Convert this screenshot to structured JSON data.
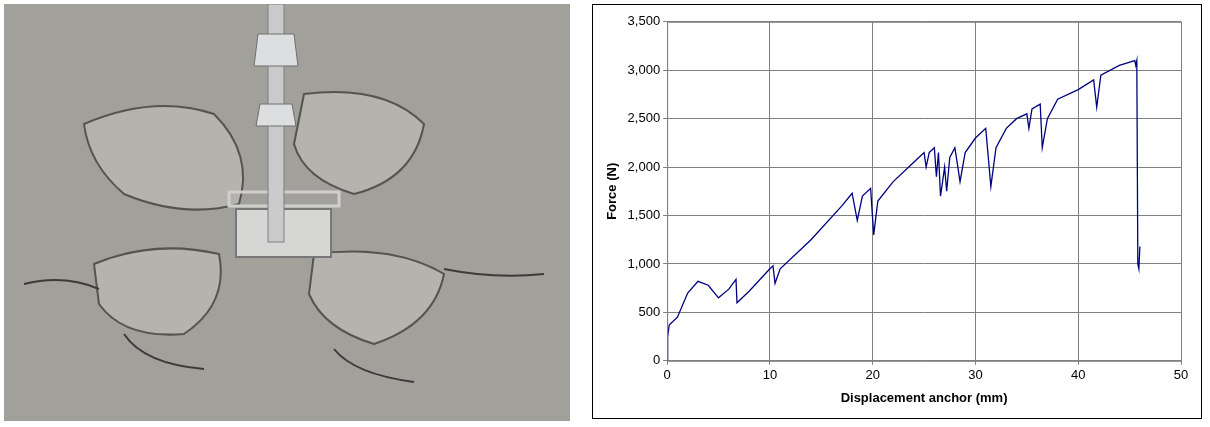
{
  "chart_data": {
    "type": "line",
    "x_label": "Displacement anchor (mm)",
    "y_label": "Force (N)",
    "x": [
      0,
      0.05,
      0.2,
      1,
      2,
      3,
      4,
      5,
      6,
      6.7,
      6.8,
      8,
      10,
      10.3,
      10.5,
      11,
      14,
      17,
      18,
      18.5,
      19,
      19.8,
      20.1,
      20.5,
      22,
      24,
      25,
      25.2,
      25.5,
      26,
      26.2,
      26.4,
      26.6,
      27,
      27.2,
      27.5,
      28,
      28.5,
      29,
      30,
      31,
      31.5,
      32,
      33,
      34,
      35,
      35.2,
      35.5,
      36.3,
      36.5,
      37,
      38,
      40,
      41.5,
      41.8,
      42.2,
      44,
      45.5,
      45.6,
      45.7,
      45.8,
      45.9,
      46
    ],
    "values": [
      0,
      250,
      370,
      450,
      700,
      820,
      780,
      650,
      740,
      840,
      600,
      720,
      950,
      980,
      800,
      950,
      1250,
      1600,
      1730,
      1450,
      1700,
      1780,
      1300,
      1650,
      1850,
      2050,
      2150,
      2000,
      2150,
      2200,
      1900,
      2150,
      1700,
      2000,
      1750,
      2100,
      2200,
      1850,
      2150,
      2300,
      2400,
      1800,
      2200,
      2400,
      2500,
      2550,
      2400,
      2600,
      2650,
      2200,
      2500,
      2700,
      2800,
      2900,
      2620,
      2950,
      3050,
      3100,
      3050,
      3100,
      1000,
      950,
      1180
    ],
    "color": "#000080",
    "xlim": [
      0,
      50
    ],
    "xticks": [
      0,
      10,
      20,
      30,
      40,
      50
    ],
    "ylim": [
      0,
      3500
    ],
    "yticks": [
      0,
      500,
      1000,
      1500,
      2000,
      2500,
      3000,
      3500
    ],
    "grid": true
  }
}
